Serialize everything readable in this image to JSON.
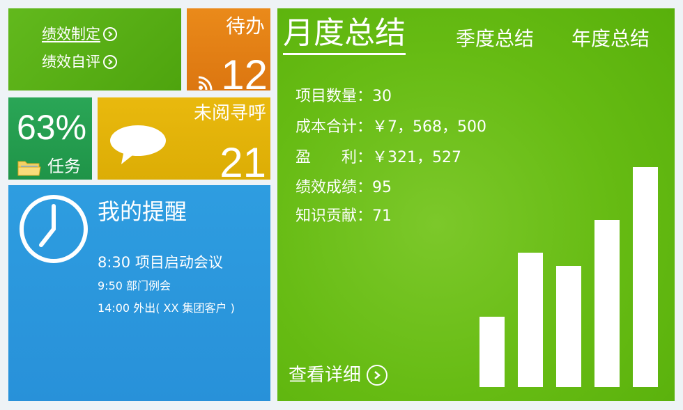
{
  "performance": {
    "link1_label": "绩效制定",
    "link2_label": "绩效自评"
  },
  "todo": {
    "label": "待办",
    "count": "12"
  },
  "task": {
    "percent": "63%",
    "label": "任务"
  },
  "unread": {
    "label": "未阅寻呼",
    "count": "21"
  },
  "reminder": {
    "title": "我的提醒",
    "items": [
      "8:30 项目启动会议",
      "9:50 部门例会",
      "14:00 外出( XX 集团客户 )"
    ]
  },
  "summary": {
    "tabs": [
      "月度总结",
      "季度总结",
      "年度总结"
    ],
    "active_tab": "月度总结",
    "stats": [
      "项目数量：30",
      "成本合计：￥7，568，500",
      "盈　　利：￥321，527",
      "绩效成绩：95",
      "知识贡献：71"
    ],
    "detail_label": "查看详细",
    "bar_levels": [
      0.32,
      0.61,
      0.55,
      0.76,
      1.0
    ]
  },
  "colors": {
    "performance": "#5aaf17",
    "todo": "#e2801a",
    "task": "#23a050",
    "unread": "#e2b30a",
    "reminder": "#2b97dd",
    "summary": "#66bb13"
  }
}
